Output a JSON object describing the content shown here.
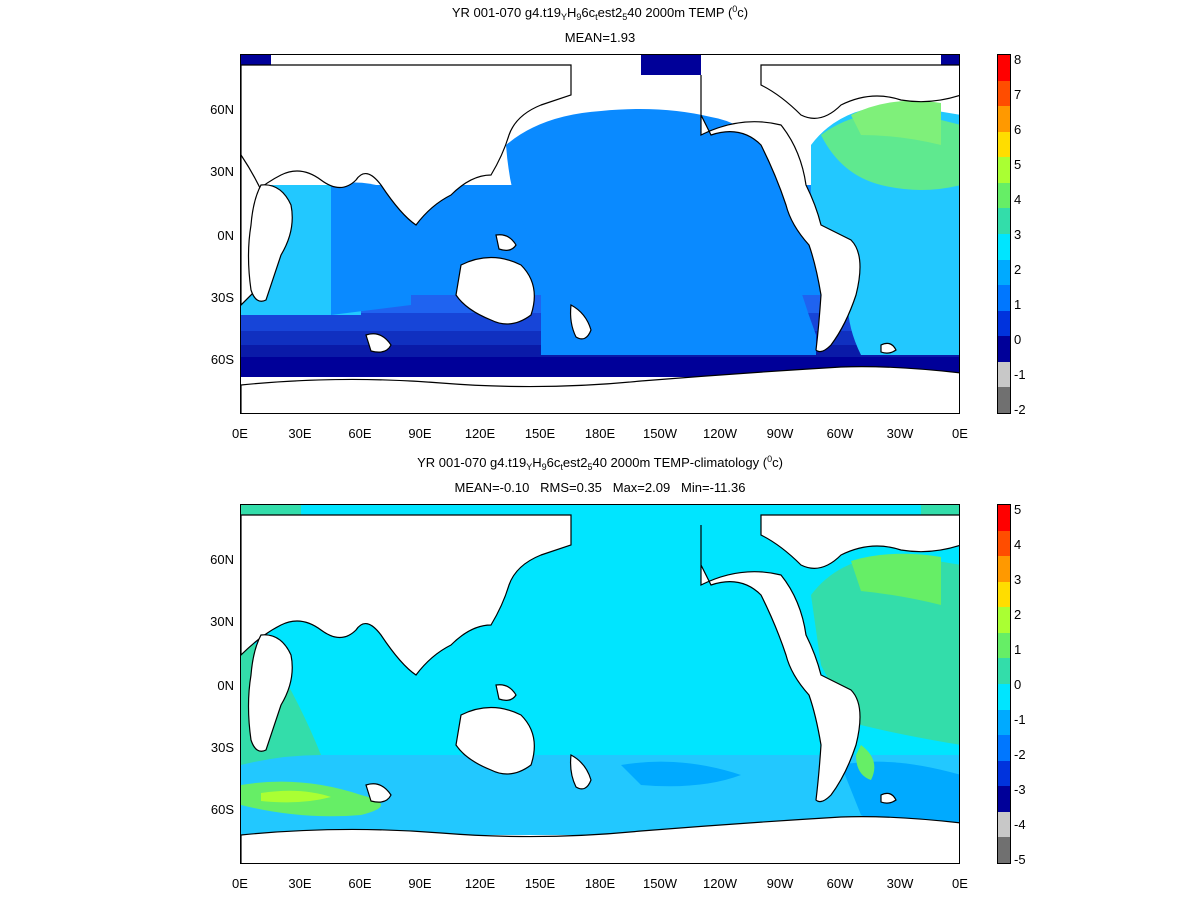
{
  "panels": [
    {
      "title_parts": {
        "a": "YR 001-070 g4.t19",
        "s1": "Y",
        "b": "H",
        "s2": "9",
        "c": "6c",
        "s3": "t",
        "d": "est2",
        "s4": "5",
        "e": "40 2000m TEMP (",
        "sup": "0",
        "f": "c)"
      },
      "subtitle": "MEAN=1.93",
      "colorbar_ticks": [
        "8",
        "7",
        "6",
        "5",
        "4",
        "3",
        "2",
        "1",
        "0",
        "-1",
        "-2"
      ],
      "colorbar_colors": [
        "#ff0000",
        "#ff4d00",
        "#ff9900",
        "#ffdd00",
        "#aaff33",
        "#66ee66",
        "#33ddaa",
        "#00e5ff",
        "#00aaff",
        "#0077ff",
        "#0033dd",
        "#000099",
        "#c8c8c8",
        "#707070"
      ]
    },
    {
      "title_parts": {
        "a": "YR 001-070 g4.t19",
        "s1": "Y",
        "b": "H",
        "s2": "9",
        "c": "6c",
        "s3": "t",
        "d": "est2",
        "s4": "5",
        "e": "40 2000m TEMP-climatology (",
        "sup": "0",
        "f": "c)"
      },
      "subtitle": "MEAN=-0.10   RMS=0.35   Max=2.09   Min=-11.36",
      "colorbar_ticks": [
        "5",
        "4",
        "3",
        "2",
        "1",
        "0",
        "-1",
        "-2",
        "-3",
        "-4",
        "-5"
      ],
      "colorbar_colors": [
        "#ff0000",
        "#ff4d00",
        "#ff9900",
        "#ffdd00",
        "#aaff33",
        "#66ee66",
        "#33ddaa",
        "#00e5ff",
        "#00aaff",
        "#0077ff",
        "#0033dd",
        "#000099",
        "#c8c8c8",
        "#707070"
      ]
    }
  ],
  "x_ticks": [
    "0E",
    "30E",
    "60E",
    "90E",
    "120E",
    "150E",
    "180E",
    "150W",
    "120W",
    "90W",
    "60W",
    "30W",
    "0E"
  ],
  "y_ticks": [
    "60N",
    "30N",
    "0N",
    "30S",
    "60S"
  ]
}
